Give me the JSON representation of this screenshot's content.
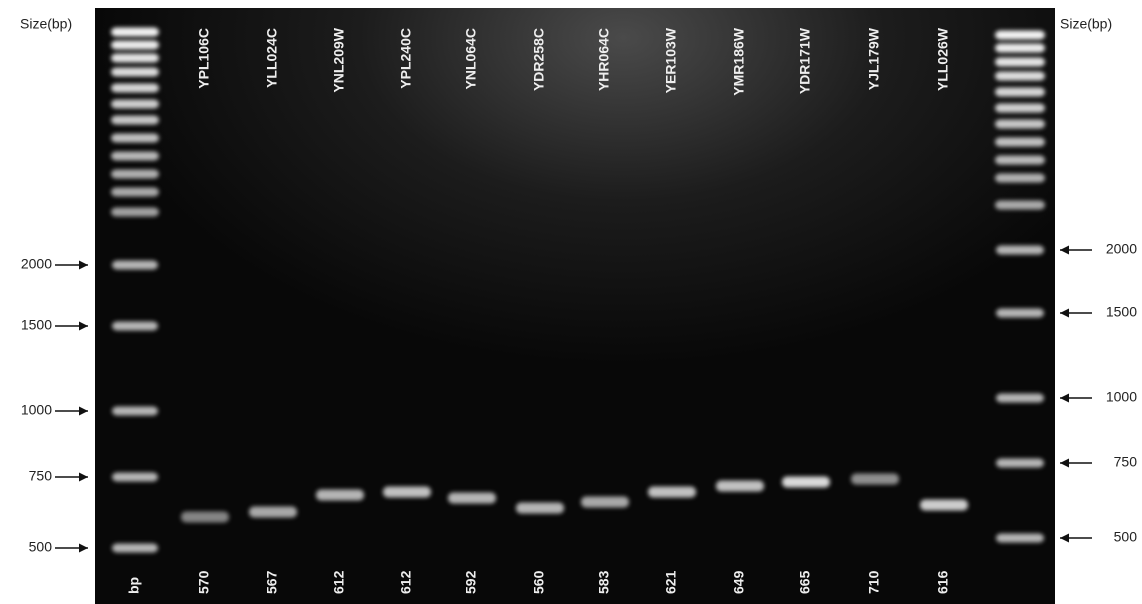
{
  "left_axis": {
    "title": "Size(bp)",
    "markers": [
      2000,
      1500,
      1000,
      750,
      500
    ]
  },
  "right_axis": {
    "title": "Size(bp)",
    "markers": [
      2000,
      1500,
      1000,
      750,
      500
    ]
  },
  "lanes": [
    "YPL106C",
    "YLL024C",
    "YNL209W",
    "YPL240C",
    "YNL064C",
    "YDR258C",
    "YHR064C",
    "YER103W",
    "YMR186W",
    "YDR171W",
    "YJL179W",
    "YLL026W"
  ],
  "bottom_labels": [
    "bp",
    "570",
    "567",
    "612",
    "612",
    "592",
    "560",
    "583",
    "621",
    "649",
    "665",
    "710",
    "616"
  ]
}
